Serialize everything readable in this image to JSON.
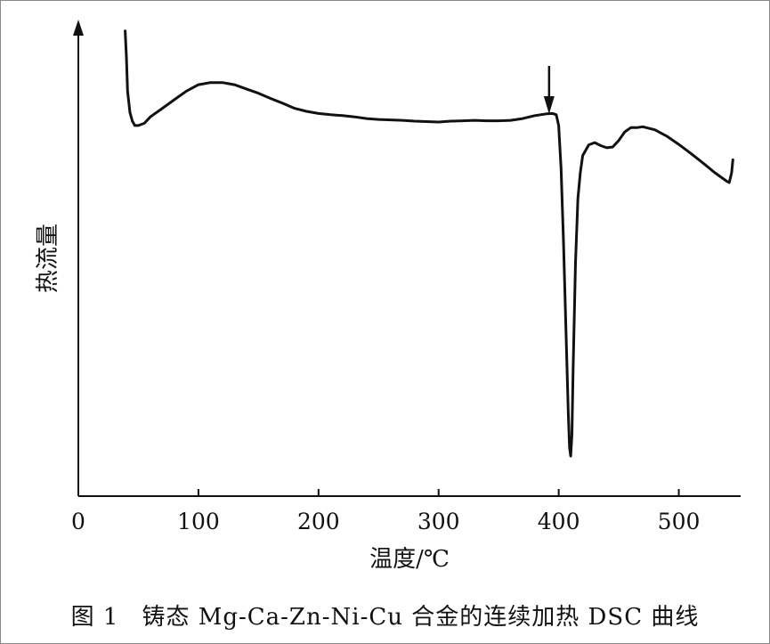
{
  "chart_data": {
    "type": "line",
    "xlabel": "温度/℃",
    "ylabel": "热流量",
    "xlim": [
      0,
      550
    ],
    "ylim": [
      0,
      100
    ],
    "x_ticks": [
      0,
      100,
      200,
      300,
      400,
      500
    ],
    "x_tick_labels": [
      "0",
      "100",
      "200",
      "300",
      "400",
      "500"
    ],
    "grid": false,
    "legend": "none",
    "y_axis_values_shown": false,
    "series": [
      {
        "name": "",
        "x": [
          39,
          40,
          41,
          43,
          45,
          47,
          50,
          55,
          60,
          70,
          80,
          90,
          100,
          110,
          120,
          130,
          140,
          150,
          160,
          170,
          180,
          190,
          200,
          210,
          220,
          230,
          240,
          250,
          260,
          270,
          280,
          290,
          300,
          310,
          320,
          330,
          340,
          350,
          360,
          370,
          380,
          385,
          390,
          395,
          398,
          400,
          402,
          404,
          406,
          408,
          409,
          410,
          411,
          412,
          414,
          416,
          418,
          420,
          425,
          430,
          435,
          440,
          445,
          450,
          455,
          460,
          465,
          470,
          480,
          490,
          500,
          510,
          520,
          530,
          540,
          542,
          544,
          545
        ],
        "y": [
          99,
          93,
          85,
          80,
          78,
          77,
          77,
          77.5,
          79,
          81,
          83,
          85,
          86.5,
          87,
          87,
          86.5,
          85.5,
          84.5,
          83.3,
          82.2,
          81,
          80.3,
          79.8,
          79.5,
          79.3,
          79,
          78.6,
          78.4,
          78.3,
          78.2,
          78,
          77.9,
          77.8,
          78,
          78.1,
          78.2,
          78.1,
          78.1,
          78.2,
          78.6,
          79.3,
          79.5,
          79.7,
          79.8,
          79.5,
          77,
          67,
          50,
          30,
          10,
          2,
          0,
          5,
          20,
          45,
          60,
          66,
          70,
          72.5,
          73,
          72.3,
          71.8,
          72,
          73.5,
          75.5,
          76.5,
          76.5,
          76.7,
          76,
          74.5,
          72.6,
          70.5,
          68.3,
          66,
          64,
          63.7,
          66,
          69
        ]
      }
    ],
    "annotations": [
      {
        "type": "arrow",
        "x": 392,
        "direction": "down"
      }
    ]
  },
  "caption": {
    "number": "图 1",
    "text": "铸态 Mg-Ca-Zn-Ni-Cu 合金的连续加热 DSC 曲线"
  }
}
